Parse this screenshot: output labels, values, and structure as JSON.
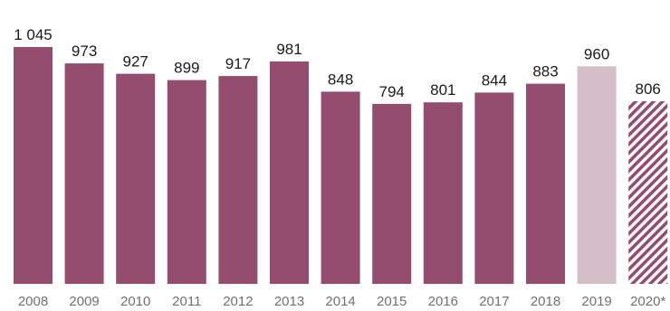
{
  "chart_data": {
    "type": "bar",
    "categories": [
      "2008",
      "2009",
      "2010",
      "2011",
      "2012",
      "2013",
      "2014",
      "2015",
      "2016",
      "2017",
      "2018",
      "2019",
      "2020*"
    ],
    "values": [
      1045,
      973,
      927,
      899,
      917,
      981,
      848,
      794,
      801,
      844,
      883,
      960,
      806
    ],
    "value_labels": [
      "1 045",
      "973",
      "927",
      "899",
      "917",
      "981",
      "848",
      "794",
      "801",
      "844",
      "883",
      "960",
      "806"
    ],
    "bar_styles": [
      "solid",
      "solid",
      "solid",
      "solid",
      "solid",
      "solid",
      "solid",
      "solid",
      "solid",
      "solid",
      "solid",
      "light",
      "hatched"
    ],
    "title": "",
    "xlabel": "",
    "ylabel": "",
    "ylim": [
      0,
      1045
    ],
    "grid": false,
    "colors": {
      "solid": "#944d6f",
      "light": "#d4bec8",
      "hatched": "#944d6f",
      "value_text": "#1a1a1a",
      "category_text": "#707070"
    }
  }
}
